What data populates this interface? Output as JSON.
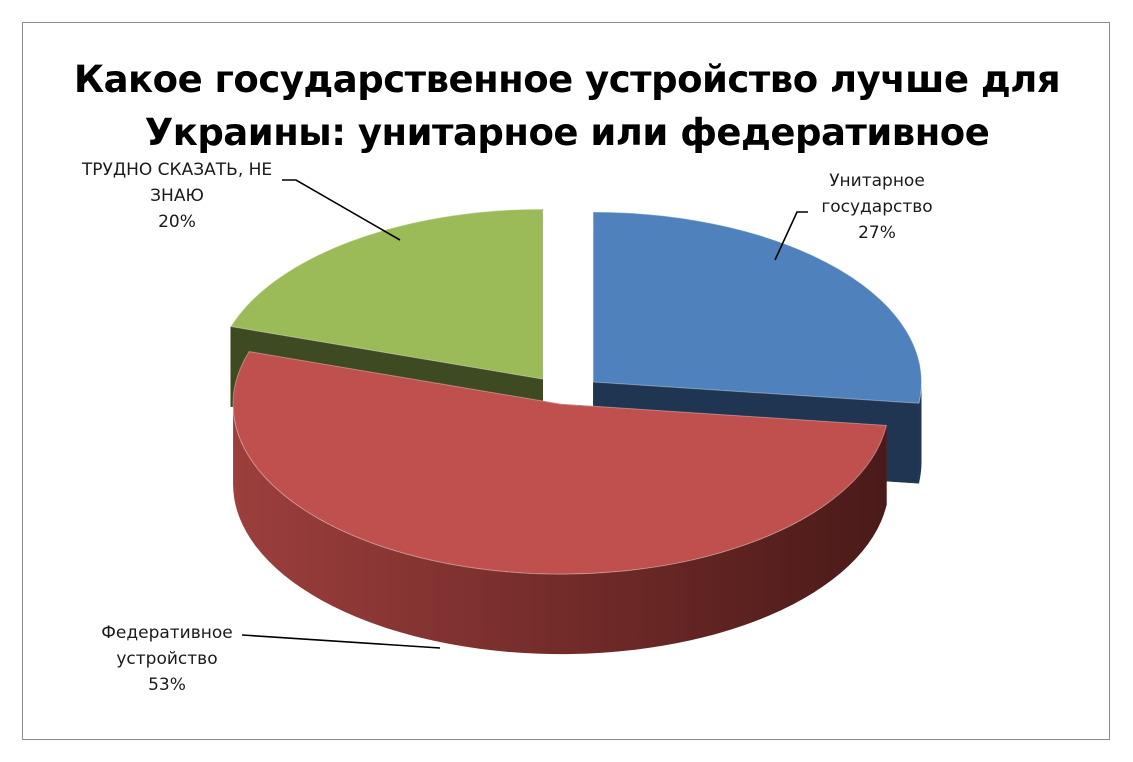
{
  "chart_data": {
    "type": "pie",
    "title": "Какое государственное устройство лучше для Украины: унитарное или федеративное",
    "title_lines": [
      "Какое государственное устройство лучше для",
      "Украины: унитарное или федеративное"
    ],
    "style": "3d-exploded",
    "categories": [
      "Унитарное государство",
      "Федеративное устройство",
      "ТРУДНО СКАЗАТЬ, НЕ ЗНАЮ"
    ],
    "values": [
      27,
      53,
      20
    ],
    "value_format": "percent",
    "colors": [
      "#4f81bd",
      "#c0504d",
      "#9bbb59"
    ],
    "side_colors": [
      "#1f3552",
      "#6e2a28",
      "#3d4a22"
    ],
    "data_labels": [
      {
        "lines": [
          "Унитарное",
          "государство"
        ],
        "value_text": "27%"
      },
      {
        "lines": [
          "Федеративное",
          "устройство"
        ],
        "value_text": "53%"
      },
      {
        "lines": [
          "ТРУДНО СКАЗАТЬ, НЕ",
          "ЗНАЮ"
        ],
        "value_text": "20%"
      }
    ],
    "legend": "none"
  }
}
